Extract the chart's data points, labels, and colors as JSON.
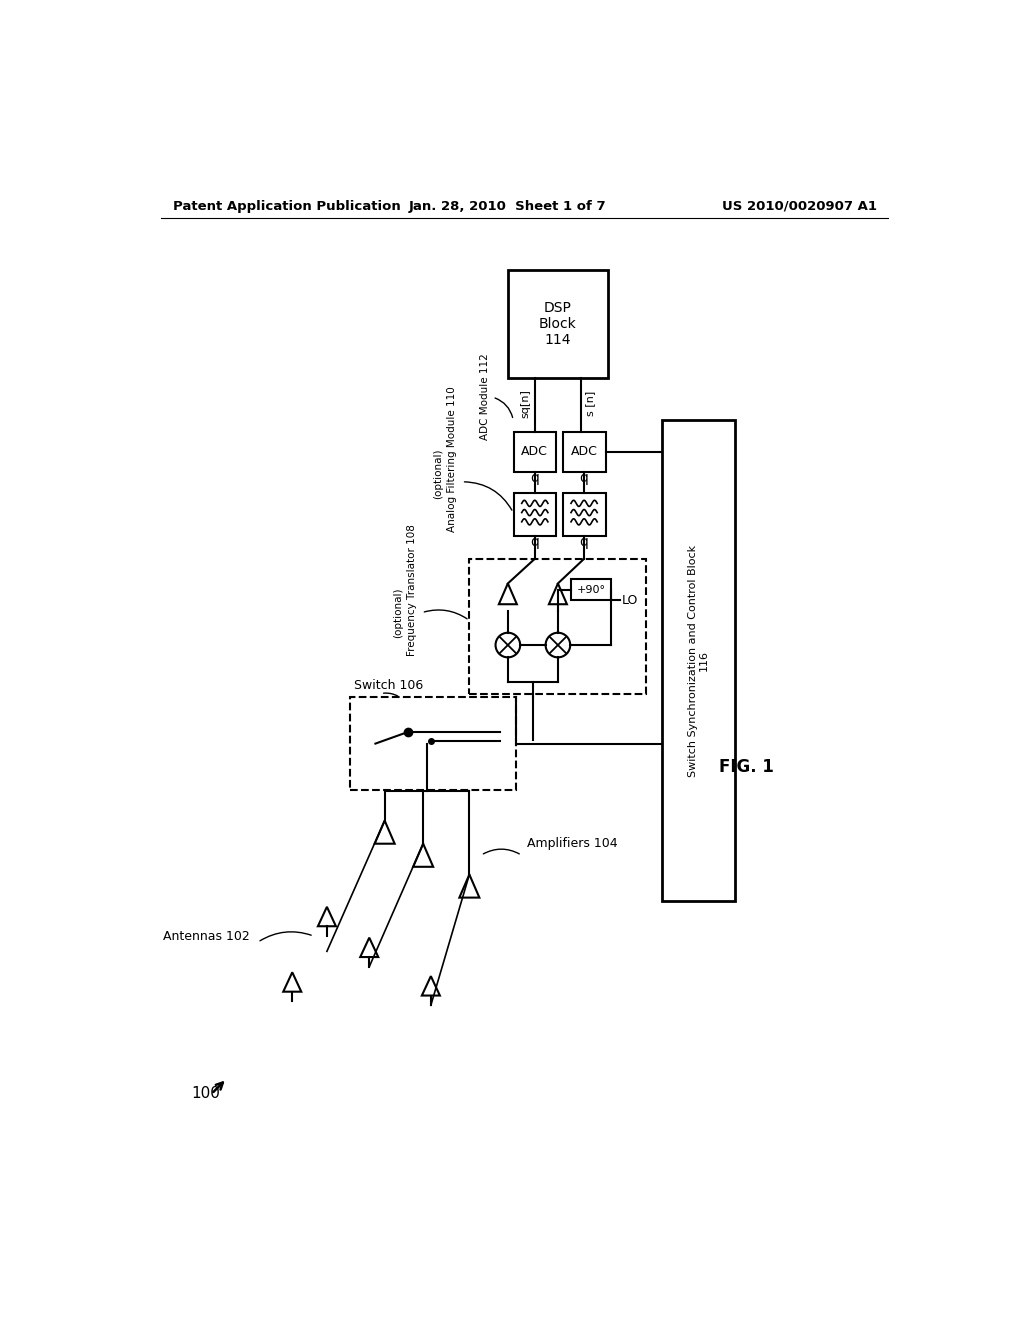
{
  "bg_color": "#ffffff",
  "header_left": "Patent Application Publication",
  "header_mid": "Jan. 28, 2010  Sheet 1 of 7",
  "header_right": "US 2010/0020907 A1",
  "fig_label": "FIG. 1",
  "system_label": "100",
  "labels": {
    "antennas": "Antennas 102",
    "amplifiers": "Amplifiers 104",
    "switch": "Switch 106",
    "freq_trans_1": "Frequency Translator 108",
    "freq_trans_2": "(optional)",
    "analog_filt_1": "Analog Filtering Module 110",
    "analog_filt_2": "(optional)",
    "adc_module": "ADC Module 112",
    "dsp_block": "DSP\nBlock\n114",
    "switch_sync": "Switch Synchronization and Control Block\n116",
    "sq_n": "sq[n]",
    "s_n": "s [n]",
    "q_label": "q",
    "lo_label": "LO",
    "phase_label": "+90°",
    "adc": "ADC"
  }
}
